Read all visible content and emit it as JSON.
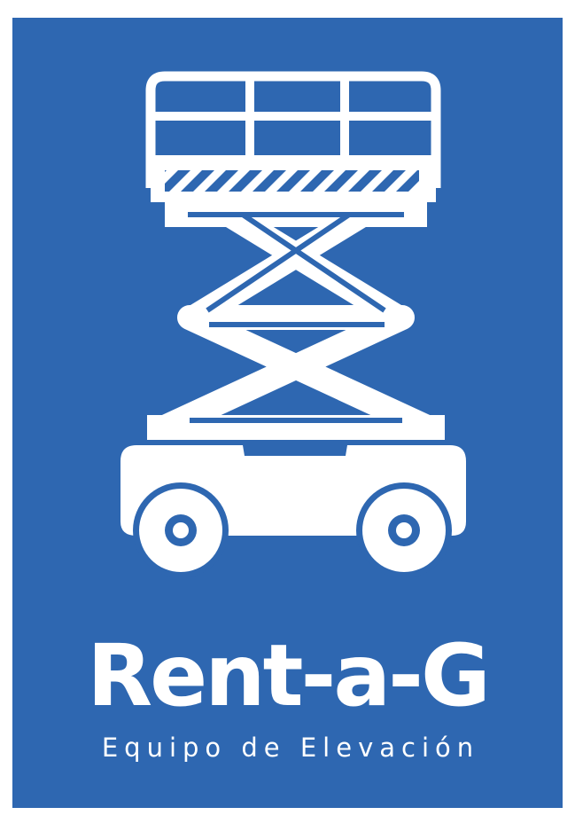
{
  "brand": {
    "name": "Rent-a-G",
    "tagline": "Equipo de Elevación"
  },
  "illustration": {
    "subject": "scissor-lift-icon"
  },
  "colors": {
    "background": "#2e67b1",
    "foreground": "#ffffff",
    "page": "#ffffff"
  }
}
